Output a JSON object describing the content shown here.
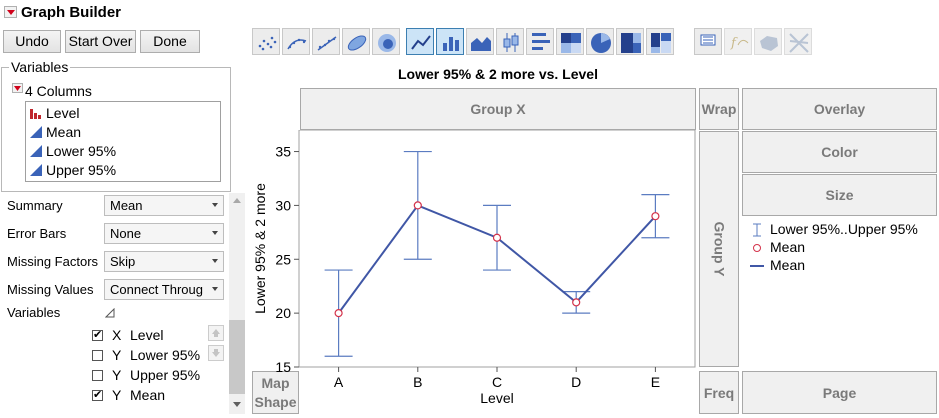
{
  "app": {
    "title": "Graph Builder"
  },
  "toolbar": {
    "undo": "Undo",
    "start_over": "Start Over",
    "done": "Done"
  },
  "element_icons": [
    {
      "name": "points-element-icon",
      "state": "normal"
    },
    {
      "name": "smoother-element-icon",
      "state": "normal"
    },
    {
      "name": "line-of-fit-element-icon",
      "state": "normal"
    },
    {
      "name": "ellipse-element-icon",
      "state": "normal"
    },
    {
      "name": "contour-element-icon",
      "state": "normal"
    },
    {
      "name": "line-element-icon",
      "state": "active"
    },
    {
      "name": "bar-element-icon",
      "state": "active"
    },
    {
      "name": "area-element-icon",
      "state": "normal"
    },
    {
      "name": "box-plot-element-icon",
      "state": "normal"
    },
    {
      "name": "histogram-element-icon",
      "state": "normal"
    },
    {
      "name": "heatmap-element-icon",
      "state": "normal"
    },
    {
      "name": "pie-element-icon",
      "state": "normal"
    },
    {
      "name": "treemap-element-icon",
      "state": "normal"
    },
    {
      "name": "mosaic-element-icon",
      "state": "normal"
    },
    {
      "name": "caption-box-element-icon",
      "state": "normal"
    },
    {
      "name": "formula-element-icon",
      "state": "disabled"
    },
    {
      "name": "map-shapes-element-icon",
      "state": "disabled"
    },
    {
      "name": "parallel-element-icon",
      "state": "disabled"
    }
  ],
  "variables_panel": {
    "title": "Variables",
    "columns_label": "4 Columns",
    "columns": [
      {
        "name": "Level",
        "icon": "nominal-bar-icon"
      },
      {
        "name": "Mean",
        "icon": "continuous-triangle-icon"
      },
      {
        "name": "Lower 95%",
        "icon": "continuous-triangle-icon"
      },
      {
        "name": "Upper 95%",
        "icon": "continuous-triangle-icon"
      }
    ]
  },
  "options": {
    "summary": {
      "label": "Summary",
      "value": "Mean"
    },
    "error_bars": {
      "label": "Error Bars",
      "value": "None"
    },
    "missing_factors": {
      "label": "Missing Factors",
      "value": "Skip"
    },
    "missing_values": {
      "label": "Missing Values",
      "value": "Connect Throug"
    },
    "variables_label": "Variables"
  },
  "variable_roles": [
    {
      "checked": true,
      "role": "X",
      "name": "Level"
    },
    {
      "checked": false,
      "role": "Y",
      "name": "Lower 95%"
    },
    {
      "checked": false,
      "role": "Y",
      "name": "Upper 95%"
    },
    {
      "checked": true,
      "role": "Y",
      "name": "Mean"
    }
  ],
  "zones": {
    "group_x": "Group X",
    "wrap": "Wrap",
    "overlay": "Overlay",
    "color": "Color",
    "size": "Size",
    "group_y": "Group Y",
    "map_shape_line1": "Map",
    "map_shape_line2": "Shape",
    "freq": "Freq",
    "page": "Page"
  },
  "legend": {
    "items": [
      {
        "symbol": "error-bar",
        "label": "Lower 95%..Upper 95%"
      },
      {
        "symbol": "circle",
        "label": "Mean"
      },
      {
        "symbol": "line",
        "label": "Mean"
      }
    ]
  },
  "colors": {
    "series_line": "#4057a6",
    "error_bar": "#5b7cc1",
    "mean_marker": "#d4324a",
    "title_triangle": "#d0021b"
  },
  "chart_data": {
    "type": "line",
    "title": "Lower 95% & 2 more vs. Level",
    "xlabel": "Level",
    "ylabel": "Lower 95% & 2 more",
    "categories": [
      "A",
      "B",
      "C",
      "D",
      "E"
    ],
    "ylim": [
      15,
      37
    ],
    "yticks": [
      15,
      20,
      25,
      30,
      35
    ],
    "grid": false,
    "legend_position": "right",
    "series": [
      {
        "name": "Mean",
        "values": [
          20,
          30,
          27,
          21,
          29
        ],
        "marker": "circle"
      },
      {
        "name": "Lower 95%",
        "values": [
          16,
          25,
          24,
          20,
          27
        ]
      },
      {
        "name": "Upper 95%",
        "values": [
          24,
          35,
          30,
          22,
          31
        ]
      }
    ]
  }
}
